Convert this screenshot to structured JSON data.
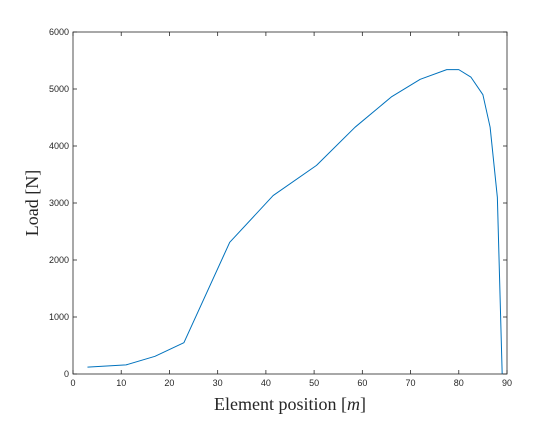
{
  "chart_data": {
    "type": "line",
    "xlabel": "Element position [m]",
    "xlabel_parts": {
      "prefix": "Element position [",
      "variable": "m",
      "suffix": "]"
    },
    "ylabel": "Load [N]",
    "xlim": [
      0,
      90
    ],
    "ylim": [
      0,
      6000
    ],
    "xticks": [
      0,
      10,
      20,
      30,
      40,
      50,
      60,
      70,
      80,
      90
    ],
    "yticks": [
      0,
      1000,
      2000,
      3000,
      4000,
      5000,
      6000
    ],
    "grid": false,
    "line_color": "#0072bd",
    "series": [
      {
        "x": [
          3,
          11,
          17,
          23,
          32.5,
          41.5,
          50.5,
          58.5,
          66,
          72,
          77.5,
          80,
          82.5,
          85,
          86.5,
          88,
          89
        ],
        "y": [
          120,
          160,
          310,
          550,
          2310,
          3130,
          3660,
          4330,
          4860,
          5170,
          5340,
          5340,
          5210,
          4900,
          4330,
          3100,
          0
        ]
      }
    ]
  }
}
